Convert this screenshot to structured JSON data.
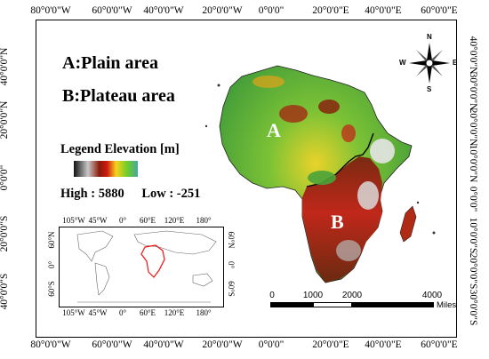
{
  "map": {
    "labels": {
      "plain": "A:Plain area",
      "plateau": "B:Plateau area",
      "region_a": "A",
      "region_b": "B"
    },
    "legend": {
      "title": "Legend Elevation [m]",
      "high_label": "High : 5880",
      "low_label": "Low : -251",
      "colors": [
        "#111111",
        "#c8c8c8",
        "#8a1a0b",
        "#d01a12",
        "#f7d21c",
        "#6ccd2a",
        "#45a89e"
      ]
    },
    "elevation": {
      "high": 5880,
      "low": -251,
      "unit": "m"
    },
    "axes": {
      "longitude_ticks": [
        "80°0'0\"W",
        "60°0'0\"W",
        "40°0'0\"W",
        "20°0'0\"W",
        "0°0'0\"",
        "20°0'0\"E",
        "40°0'0\"E",
        "60°0'0\"E"
      ],
      "latitude_ticks": [
        "40°0'0\"N",
        "30°0'0\"N",
        "20°0'0\"N",
        "10°0'0\"N",
        "0°0'0\"",
        "10°0'0\"S",
        "20°0'0\"S",
        "30°0'0\"S"
      ],
      "left_ticks": [
        "40°0'0\"N",
        "20°0'0\"N",
        "0°0'0\"",
        "20°0'0\"S",
        "40°0'0\"S"
      ],
      "right_ticks": [
        "40°0'0\"N",
        "30°0'0\"N",
        "20°0'0\"N",
        "10°0'0\"N",
        "0°0'0\"",
        "10°0'0\"S",
        "20°0'0\"S",
        "30°0'0\"S"
      ]
    },
    "inset": {
      "lon_ticks": [
        "105°W",
        "45°W",
        "0°",
        "60°E",
        "120°E",
        "180°"
      ],
      "lat_ticks": [
        "60°N",
        "0°",
        "60°S"
      ]
    },
    "scale": {
      "labels": [
        "0",
        "1000",
        "2000",
        "4000"
      ],
      "unit": "Miles"
    },
    "compass": {
      "n": "N",
      "s": "S",
      "e": "E",
      "w": "W"
    },
    "colors": {
      "green": "#4aa33a",
      "yellow": "#e9d32a",
      "red": "#c0281a",
      "brown": "#6a2a10",
      "white": "#eeeeee"
    }
  }
}
